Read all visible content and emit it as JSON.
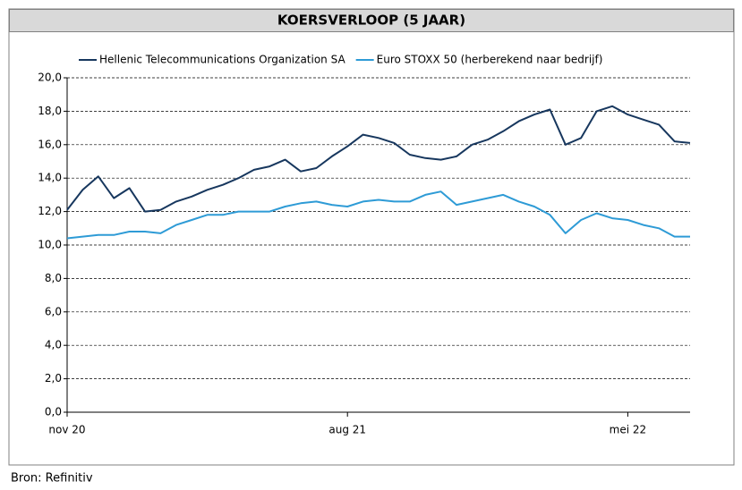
{
  "chart_data": {
    "type": "line",
    "title": "KOERSVERLOOP (5 JAAR)",
    "categories": [
      "nov 20",
      null,
      null,
      null,
      null,
      null,
      null,
      null,
      null,
      null,
      null,
      null,
      null,
      null,
      null,
      null,
      null,
      null,
      "aug 21",
      null,
      null,
      null,
      null,
      null,
      null,
      null,
      null,
      null,
      null,
      null,
      null,
      null,
      null,
      null,
      null,
      null,
      "mei 22",
      null,
      null,
      null,
      null
    ],
    "series": [
      {
        "name": "Hellenic Telecommunications Organization SA",
        "color": "#17375e",
        "values": [
          12.1,
          13.3,
          14.1,
          12.8,
          13.4,
          12.0,
          12.1,
          12.6,
          12.9,
          13.3,
          13.6,
          14.0,
          14.5,
          14.7,
          15.1,
          14.4,
          14.6,
          15.3,
          15.9,
          16.6,
          16.4,
          16.1,
          15.4,
          15.2,
          15.1,
          15.3,
          16.0,
          16.3,
          16.8,
          17.4,
          17.8,
          18.1,
          16.0,
          16.4,
          18.0,
          18.3,
          17.8,
          17.5,
          17.2,
          16.2,
          16.1
        ]
      },
      {
        "name": "Euro STOXX 50 (herberekend naar bedrijf)",
        "color": "#2e9bd6",
        "values": [
          10.4,
          10.5,
          10.6,
          10.6,
          10.8,
          10.8,
          10.7,
          11.2,
          11.5,
          11.8,
          11.8,
          12.0,
          12.0,
          12.0,
          12.3,
          12.5,
          12.6,
          12.4,
          12.3,
          12.6,
          12.7,
          12.6,
          12.6,
          13.0,
          13.2,
          12.4,
          12.6,
          12.8,
          13.0,
          12.6,
          12.3,
          11.8,
          10.7,
          11.5,
          11.9,
          11.6,
          11.5,
          11.2,
          11.0,
          10.5,
          10.5
        ]
      }
    ],
    "ylim": [
      0,
      20
    ],
    "yticks": [
      {
        "value": 0,
        "label": "0,0"
      },
      {
        "value": 2,
        "label": "2,0"
      },
      {
        "value": 4,
        "label": "4,0"
      },
      {
        "value": 6,
        "label": "6,0"
      },
      {
        "value": 8,
        "label": "8,0"
      },
      {
        "value": 10,
        "label": "10,0"
      },
      {
        "value": 12,
        "label": "12,0"
      },
      {
        "value": 14,
        "label": "14,0"
      },
      {
        "value": 16,
        "label": "16,0"
      },
      {
        "value": 18,
        "label": "18,0"
      },
      {
        "value": 20,
        "label": "20,0"
      }
    ],
    "grid": true
  },
  "source": "Bron: Refinitiv"
}
